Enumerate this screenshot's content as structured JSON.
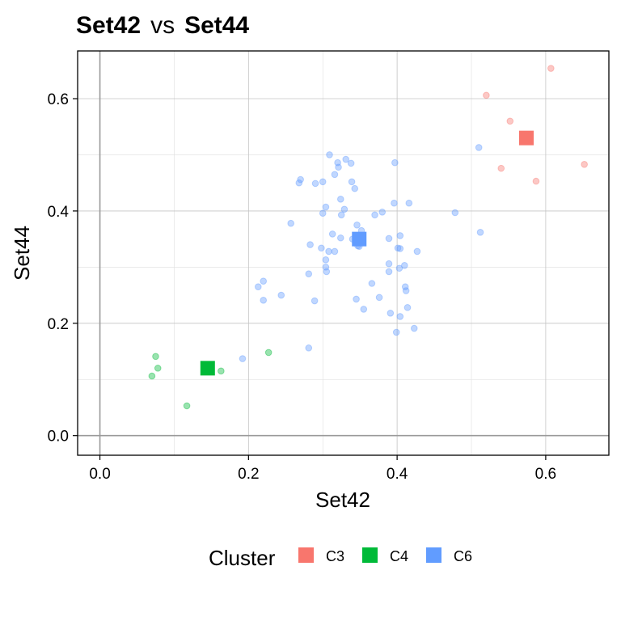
{
  "chart_data": {
    "type": "scatter",
    "title": {
      "left": "Set42",
      "connector": "vs",
      "right": "Set44"
    },
    "xlabel": "Set42",
    "ylabel": "Set44",
    "xlim": [
      -0.03,
      0.685
    ],
    "ylim": [
      -0.035,
      0.685
    ],
    "xticks": [
      0.0,
      0.2,
      0.4,
      0.6
    ],
    "yticks": [
      0.0,
      0.2,
      0.4,
      0.6
    ],
    "xtick_labels": [
      "0.0",
      "0.2",
      "0.4",
      "0.6"
    ],
    "ytick_labels": [
      "0.0",
      "0.2",
      "0.4",
      "0.6"
    ],
    "grid": true,
    "legend": {
      "title": "Cluster",
      "position": "bottom"
    },
    "series": [
      {
        "name": "C3",
        "color": "#F8766D",
        "centroid": [
          0.574,
          0.53
        ],
        "points": [
          [
            0.607,
            0.654
          ],
          [
            0.52,
            0.606
          ],
          [
            0.552,
            0.56
          ],
          [
            0.54,
            0.476
          ],
          [
            0.587,
            0.453
          ],
          [
            0.652,
            0.483
          ]
        ]
      },
      {
        "name": "C4",
        "color": "#00BA38",
        "centroid": [
          0.145,
          0.12
        ],
        "points": [
          [
            0.075,
            0.141
          ],
          [
            0.078,
            0.12
          ],
          [
            0.07,
            0.106
          ],
          [
            0.117,
            0.053
          ],
          [
            0.163,
            0.115
          ],
          [
            0.227,
            0.148
          ]
        ]
      },
      {
        "name": "C6",
        "color": "#619CFF",
        "centroid": [
          0.349,
          0.35
        ],
        "points": [
          [
            0.309,
            0.5
          ],
          [
            0.32,
            0.486
          ],
          [
            0.321,
            0.478
          ],
          [
            0.331,
            0.492
          ],
          [
            0.338,
            0.485
          ],
          [
            0.397,
            0.486
          ],
          [
            0.316,
            0.465
          ],
          [
            0.3,
            0.452
          ],
          [
            0.29,
            0.449
          ],
          [
            0.27,
            0.456
          ],
          [
            0.268,
            0.45
          ],
          [
            0.339,
            0.452
          ],
          [
            0.343,
            0.44
          ],
          [
            0.324,
            0.421
          ],
          [
            0.396,
            0.414
          ],
          [
            0.416,
            0.414
          ],
          [
            0.329,
            0.403
          ],
          [
            0.304,
            0.407
          ],
          [
            0.3,
            0.396
          ],
          [
            0.325,
            0.393
          ],
          [
            0.37,
            0.393
          ],
          [
            0.38,
            0.398
          ],
          [
            0.478,
            0.397
          ],
          [
            0.257,
            0.378
          ],
          [
            0.346,
            0.375
          ],
          [
            0.352,
            0.365
          ],
          [
            0.512,
            0.362
          ],
          [
            0.51,
            0.513
          ],
          [
            0.313,
            0.359
          ],
          [
            0.324,
            0.352
          ],
          [
            0.34,
            0.35
          ],
          [
            0.389,
            0.351
          ],
          [
            0.404,
            0.356
          ],
          [
            0.283,
            0.34
          ],
          [
            0.298,
            0.334
          ],
          [
            0.347,
            0.338
          ],
          [
            0.349,
            0.337
          ],
          [
            0.401,
            0.334
          ],
          [
            0.404,
            0.333
          ],
          [
            0.308,
            0.328
          ],
          [
            0.316,
            0.328
          ],
          [
            0.427,
            0.328
          ],
          [
            0.304,
            0.313
          ],
          [
            0.389,
            0.306
          ],
          [
            0.403,
            0.298
          ],
          [
            0.41,
            0.303
          ],
          [
            0.304,
            0.3
          ],
          [
            0.305,
            0.292
          ],
          [
            0.281,
            0.288
          ],
          [
            0.389,
            0.292
          ],
          [
            0.366,
            0.271
          ],
          [
            0.22,
            0.275
          ],
          [
            0.213,
            0.265
          ],
          [
            0.411,
            0.265
          ],
          [
            0.412,
            0.258
          ],
          [
            0.244,
            0.25
          ],
          [
            0.376,
            0.246
          ],
          [
            0.22,
            0.241
          ],
          [
            0.289,
            0.24
          ],
          [
            0.345,
            0.243
          ],
          [
            0.355,
            0.225
          ],
          [
            0.414,
            0.228
          ],
          [
            0.391,
            0.218
          ],
          [
            0.404,
            0.212
          ],
          [
            0.423,
            0.191
          ],
          [
            0.399,
            0.184
          ],
          [
            0.281,
            0.156
          ],
          [
            0.192,
            0.137
          ]
        ]
      }
    ]
  }
}
